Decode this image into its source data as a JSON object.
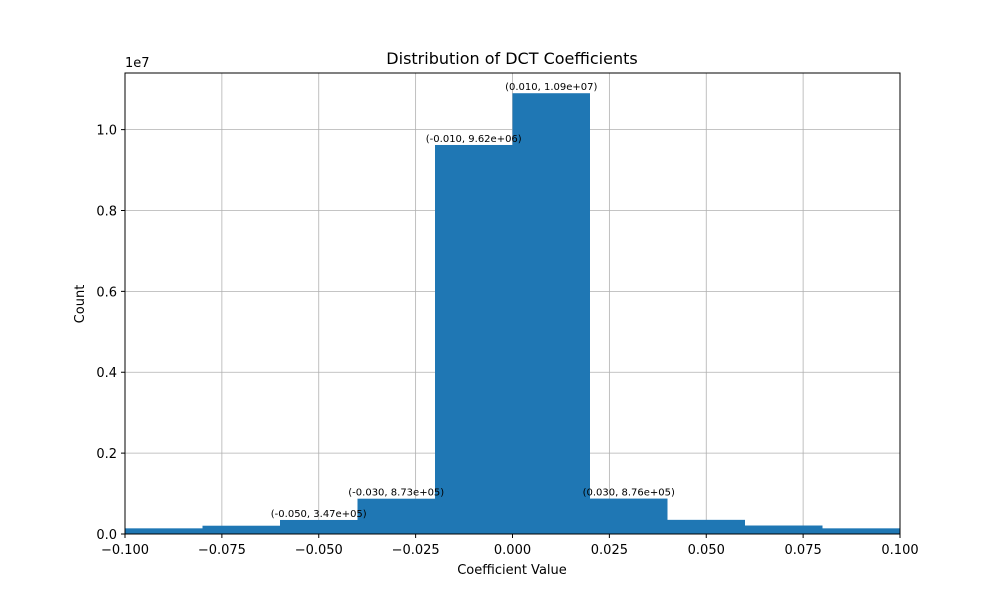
{
  "chart_data": {
    "type": "bar",
    "title": "Distribution of DCT Coefficients",
    "xlabel": "Coefficient Value",
    "ylabel": "Count",
    "y_offset_label": "1e7",
    "xlim": [
      -0.1,
      0.1
    ],
    "ylim": [
      0,
      11400000
    ],
    "grid": true,
    "bar_color": "#1f77b4",
    "bins": [
      {
        "x0": -0.1,
        "x1": -0.08,
        "value": 140000
      },
      {
        "x0": -0.08,
        "x1": -0.06,
        "value": 205000
      },
      {
        "x0": -0.06,
        "x1": -0.04,
        "value": 347000
      },
      {
        "x0": -0.04,
        "x1": -0.02,
        "value": 873000
      },
      {
        "x0": -0.02,
        "x1": 0.0,
        "value": 9620000
      },
      {
        "x0": 0.0,
        "x1": 0.02,
        "value": 10900000
      },
      {
        "x0": 0.02,
        "x1": 0.04,
        "value": 876000
      },
      {
        "x0": 0.04,
        "x1": 0.06,
        "value": 350000
      },
      {
        "x0": 0.06,
        "x1": 0.08,
        "value": 210000
      },
      {
        "x0": 0.08,
        "x1": 0.1,
        "value": 140000
      }
    ],
    "x_ticks": [
      {
        "value": -0.1,
        "label": "−0.100"
      },
      {
        "value": -0.075,
        "label": "−0.075"
      },
      {
        "value": -0.05,
        "label": "−0.050"
      },
      {
        "value": -0.025,
        "label": "−0.025"
      },
      {
        "value": 0.0,
        "label": "0.000"
      },
      {
        "value": 0.025,
        "label": "0.025"
      },
      {
        "value": 0.05,
        "label": "0.050"
      },
      {
        "value": 0.075,
        "label": "0.075"
      },
      {
        "value": 0.1,
        "label": "0.100"
      }
    ],
    "y_ticks": [
      {
        "value": 0,
        "label": "0.0"
      },
      {
        "value": 2000000,
        "label": "0.2"
      },
      {
        "value": 4000000,
        "label": "0.4"
      },
      {
        "value": 6000000,
        "label": "0.6"
      },
      {
        "value": 8000000,
        "label": "0.8"
      },
      {
        "value": 10000000,
        "label": "1.0"
      }
    ],
    "annotations": [
      {
        "x": -0.05,
        "y": 347000,
        "text": "(-0.050, 3.47e+05)"
      },
      {
        "x": -0.03,
        "y": 873000,
        "text": "(-0.030, 8.73e+05)"
      },
      {
        "x": -0.01,
        "y": 9620000,
        "text": "(-0.010, 9.62e+06)"
      },
      {
        "x": 0.01,
        "y": 10900000,
        "text": "(0.010, 1.09e+07)"
      },
      {
        "x": 0.03,
        "y": 876000,
        "text": "(0.030, 8.76e+05)"
      }
    ]
  }
}
